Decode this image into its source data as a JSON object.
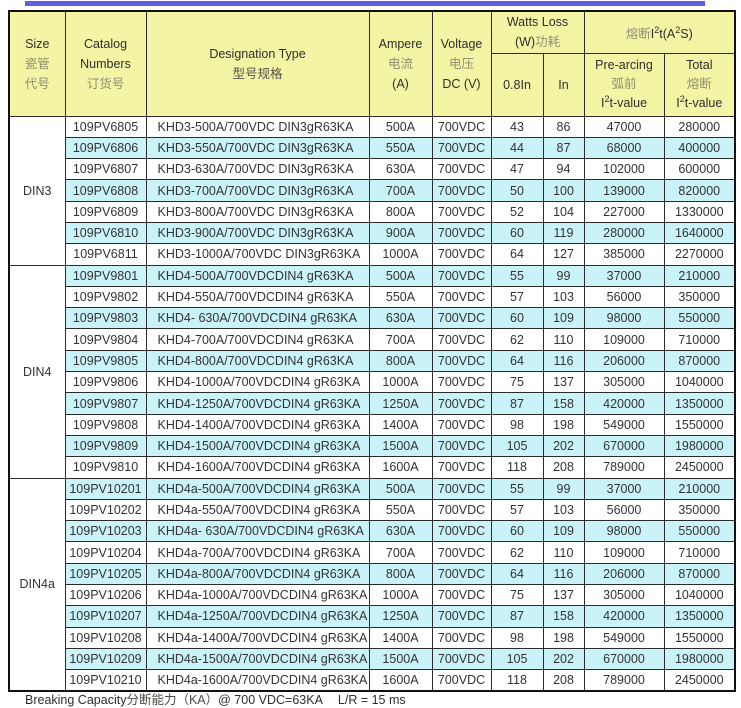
{
  "colors": {
    "top_bar": "#5e5ee0",
    "header_bg": "#f4f4a5",
    "alt_row": "#c9f3f8",
    "grid": "#2b2b2b",
    "zh_gray": "#8f8f73"
  },
  "header": {
    "size": {
      "en": "Size",
      "zh1": "瓷管",
      "zh2": "代号"
    },
    "catalog": {
      "en1": "Catalog",
      "en2": "Numbers",
      "zh": "订货号"
    },
    "designation": {
      "en": "Designation Type",
      "zh": "型号规格"
    },
    "ampere": {
      "en": "Ampere",
      "zh": "电流",
      "unit": "(A)"
    },
    "voltage": {
      "en": "Voltage",
      "zh": "电压",
      "unit": "DC (V)"
    },
    "watts_loss": {
      "en": "Watts Loss",
      "unit_en": "(W)",
      "zh": "功耗",
      "sub_08": "0.8In",
      "sub_in": "In"
    },
    "i2t": {
      "zh": "熔断",
      "i": "I",
      "sup1": "2",
      "t": "t(A",
      "sup2": "2",
      "s": "S)"
    },
    "pre_arcing": {
      "en": "Pre-arcing",
      "zh": "弧前",
      "i": "I",
      "sup": "2",
      "t": "t-value"
    },
    "total": {
      "en": "Total",
      "zh": "熔断",
      "i": "I",
      "sup": "2",
      "t": "t-value"
    }
  },
  "groups": [
    {
      "size": "DIN3",
      "rows": [
        [
          "109PV6805",
          "KHD3-500A/700VDC DIN3gR63KA",
          "500A",
          "700VDC",
          "43",
          "86",
          "47000",
          "280000"
        ],
        [
          "109PV6806",
          "KHD3-550A/700VDC DIN3gR63KA",
          "550A",
          "700VDC",
          "44",
          "87",
          "68000",
          "400000"
        ],
        [
          "109PV6807",
          "KHD3-630A/700VDC DIN3gR63KA",
          "630A",
          "700VDC",
          "47",
          "94",
          "102000",
          "600000"
        ],
        [
          "109PV6808",
          "KHD3-700A/700VDC DIN3gR63KA",
          "700A",
          "700VDC",
          "50",
          "100",
          "139000",
          "820000"
        ],
        [
          "109PV6809",
          "KHD3-800A/700VDC DIN3gR63KA",
          "800A",
          "700VDC",
          "52",
          "104",
          "227000",
          "1330000"
        ],
        [
          "109PV6810",
          "KHD3-900A/700VDC DIN3gR63KA",
          "900A",
          "700VDC",
          "60",
          "119",
          "280000",
          "1640000"
        ],
        [
          "109PV6811",
          "KHD3-1000A/700VDC DIN3gR63KA",
          "1000A",
          "700VDC",
          "64",
          "127",
          "385000",
          "2270000"
        ]
      ]
    },
    {
      "size": "DIN4",
      "rows": [
        [
          "109PV9801",
          "KHD4-500A/700VDCDIN4 gR63KA",
          "500A",
          "700VDC",
          "55",
          "99",
          "37000",
          "210000"
        ],
        [
          "109PV9802",
          "KHD4-550A/700VDCDIN4 gR63KA",
          "550A",
          "700VDC",
          "57",
          "103",
          "56000",
          "350000"
        ],
        [
          "109PV9803",
          "KHD4- 630A/700VDCDIN4 gR63KA",
          "630A",
          "700VDC",
          "60",
          "109",
          "98000",
          "550000"
        ],
        [
          "109PV9804",
          "KHD4-700A/700VDCDIN4 gR63KA",
          "700A",
          "700VDC",
          "62",
          "110",
          "109000",
          "710000"
        ],
        [
          "109PV9805",
          "KHD4-800A/700VDCDIN4 gR63KA",
          "800A",
          "700VDC",
          "64",
          "116",
          "206000",
          "870000"
        ],
        [
          "109PV9806",
          "KHD4-1000A/700VDCDIN4 gR63KA",
          "1000A",
          "700VDC",
          "75",
          "137",
          "305000",
          "1040000"
        ],
        [
          "109PV9807",
          "KHD4-1250A/700VDCDIN4 gR63KA",
          "1250A",
          "700VDC",
          "87",
          "158",
          "420000",
          "1350000"
        ],
        [
          "109PV9808",
          "KHD4-1400A/700VDCDIN4 gR63KA",
          "1400A",
          "700VDC",
          "98",
          "198",
          "549000",
          "1550000"
        ],
        [
          "109PV9809",
          "KHD4-1500A/700VDCDIN4 gR63KA",
          "1500A",
          "700VDC",
          "105",
          "202",
          "670000",
          "1980000"
        ],
        [
          "109PV9810",
          "KHD4-1600A/700VDCDIN4 gR63KA",
          "1600A",
          "700VDC",
          "118",
          "208",
          "789000",
          "2450000"
        ]
      ]
    },
    {
      "size": "DIN4a",
      "rows": [
        [
          "109PV10201",
          "KHD4a-500A/700VDCDIN4 gR63KA",
          "500A",
          "700VDC",
          "55",
          "99",
          "37000",
          "210000"
        ],
        [
          "109PV10202",
          "KHD4a-550A/700VDCDIN4 gR63KA",
          "550A",
          "700VDC",
          "57",
          "103",
          "56000",
          "350000"
        ],
        [
          "109PV10203",
          "KHD4a- 630A/700VDCDIN4 gR63KA",
          "630A",
          "700VDC",
          "60",
          "109",
          "98000",
          "550000"
        ],
        [
          "109PV10204",
          "KHD4a-700A/700VDCDIN4 gR63KA",
          "700A",
          "700VDC",
          "62",
          "110",
          "109000",
          "710000"
        ],
        [
          "109PV10205",
          "KHD4a-800A/700VDCDIN4 gR63KA",
          "800A",
          "700VDC",
          "64",
          "116",
          "206000",
          "870000"
        ],
        [
          "109PV10206",
          "KHD4a-1000A/700VDCDIN4 gR63KA",
          "1000A",
          "700VDC",
          "75",
          "137",
          "305000",
          "1040000"
        ],
        [
          "109PV10207",
          "KHD4a-1250A/700VDCDIN4 gR63KA",
          "1250A",
          "700VDC",
          "87",
          "158",
          "420000",
          "1350000"
        ],
        [
          "109PV10208",
          "KHD4a-1400A/700VDCDIN4 gR63KA",
          "1400A",
          "700VDC",
          "98",
          "198",
          "549000",
          "1550000"
        ],
        [
          "109PV10209",
          "KHD4a-1500A/700VDCDIN4 gR63KA",
          "1500A",
          "700VDC",
          "105",
          "202",
          "670000",
          "1980000"
        ],
        [
          "109PV10210",
          "KHD4a-1600A/700VDCDIN4 gR63KA",
          "1600A",
          "700VDC",
          "118",
          "208",
          "789000",
          "2450000"
        ]
      ]
    }
  ],
  "footer": {
    "en": "Breaking Capacity",
    "zh": "分断能力（KA）",
    "at": "@ 700 VDC=63KA",
    "lr": "L/R = 15 ms"
  }
}
